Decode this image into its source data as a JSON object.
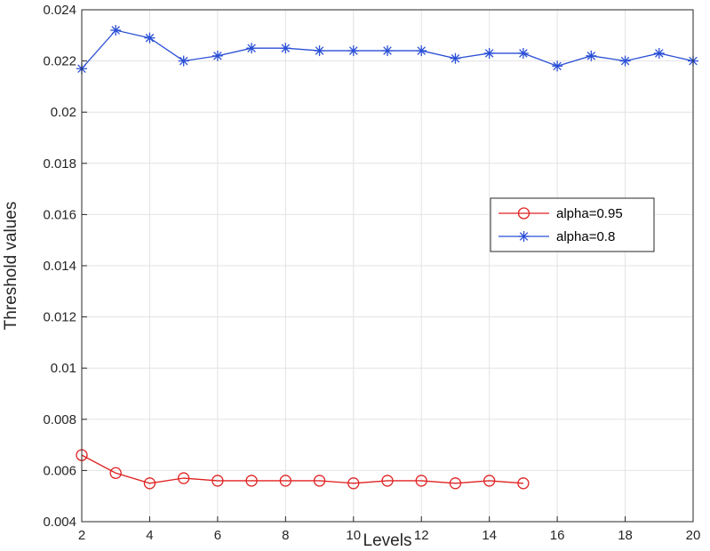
{
  "chart_data": {
    "type": "line",
    "xlabel": "Levels",
    "ylabel": "Threshold values",
    "xlim": [
      2,
      20
    ],
    "ylim": [
      0.004,
      0.024
    ],
    "xticks": [
      2,
      4,
      6,
      8,
      10,
      12,
      14,
      16,
      18,
      20
    ],
    "yticks": [
      0.004,
      0.006,
      0.008,
      0.01,
      0.012,
      0.014,
      0.016,
      0.018,
      0.02,
      0.022,
      0.024
    ],
    "ytick_labels": [
      "0.004",
      "0.006",
      "0.008",
      "0.01",
      "0.012",
      "0.014",
      "0.016",
      "0.018",
      "0.02",
      "0.022",
      "0.024"
    ],
    "grid": true,
    "legend_position": "center-right",
    "series": [
      {
        "name": "alpha=0.95",
        "color": "#e02020",
        "marker": "circle",
        "x": [
          2,
          3,
          4,
          5,
          6,
          7,
          8,
          9,
          10,
          11,
          12,
          13,
          14,
          15
        ],
        "y": [
          0.0066,
          0.0059,
          0.0055,
          0.0057,
          0.0056,
          0.0056,
          0.0056,
          0.0056,
          0.0055,
          0.0056,
          0.0056,
          0.0055,
          0.0056,
          0.0055
        ]
      },
      {
        "name": "alpha=0.8",
        "color": "#2a4fd6",
        "marker": "asterisk",
        "x": [
          2,
          3,
          4,
          5,
          6,
          7,
          8,
          9,
          10,
          11,
          12,
          13,
          14,
          15,
          16,
          17,
          18,
          19,
          20
        ],
        "y": [
          0.0217,
          0.0232,
          0.0229,
          0.022,
          0.0222,
          0.0225,
          0.0225,
          0.0224,
          0.0224,
          0.0224,
          0.0224,
          0.0221,
          0.0223,
          0.0223,
          0.0218,
          0.0222,
          0.022,
          0.0223,
          0.022
        ]
      }
    ]
  }
}
